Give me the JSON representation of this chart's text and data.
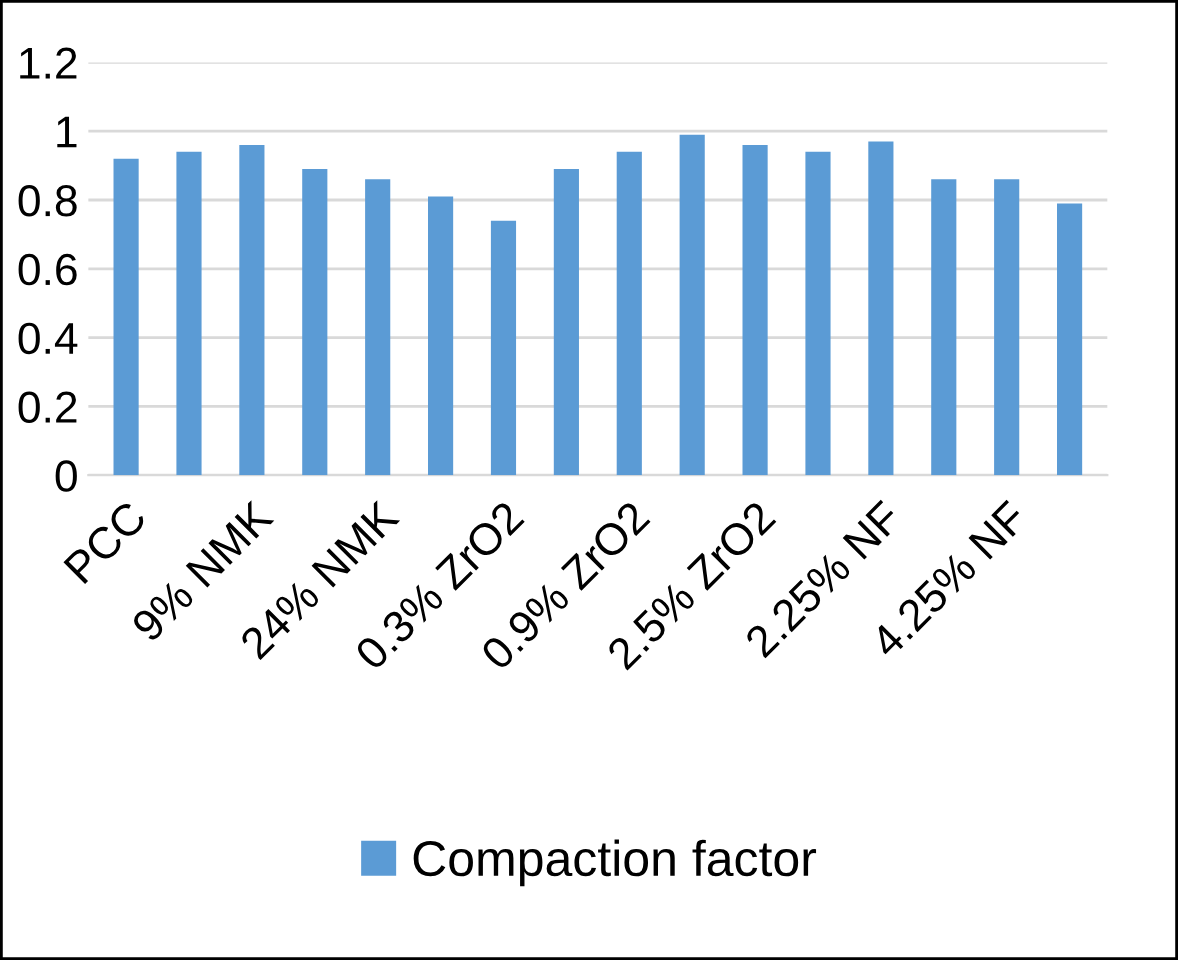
{
  "chart_data": {
    "type": "bar",
    "categories": [
      "PCC",
      null,
      "9% NMK",
      null,
      "24% NMK",
      null,
      "0.3% ZrO2",
      null,
      "0.9% ZrO2",
      null,
      "2.5% ZrO2",
      null,
      "2.25% NF",
      null,
      "4.25% NF",
      null
    ],
    "series": [
      {
        "name": "Compaction factor",
        "color": "#5b9bd5",
        "values": [
          0.92,
          0.94,
          0.96,
          0.89,
          0.86,
          0.81,
          0.74,
          0.89,
          0.94,
          0.99,
          0.96,
          0.94,
          0.97,
          0.86,
          0.86,
          0.79
        ]
      }
    ],
    "ylim": [
      0,
      1.2
    ],
    "yticks": [
      0,
      0.2,
      0.4,
      0.6,
      0.8,
      1,
      1.2
    ],
    "grid": "y",
    "legend": "bottom"
  }
}
